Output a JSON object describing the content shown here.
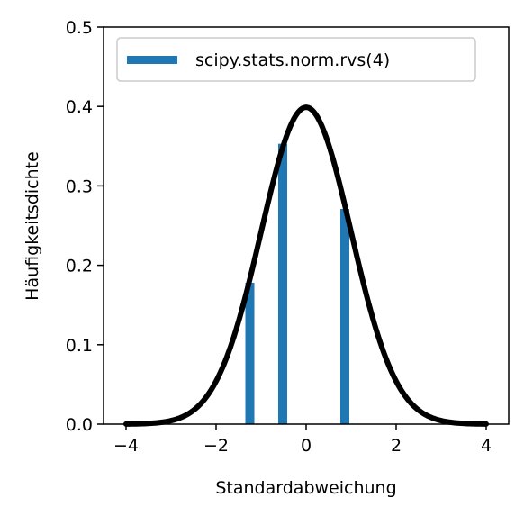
{
  "chart_data": {
    "type": "bar",
    "xlabel": "Standardabweichung",
    "ylabel": "Häufigkeitsdichte",
    "xlim": [
      -4.5,
      4.5
    ],
    "ylim": [
      0,
      0.5
    ],
    "x_ticks": [
      -4,
      -2,
      0,
      2,
      4
    ],
    "x_tick_labels": [
      "−4",
      "−2",
      "0",
      "2",
      "4"
    ],
    "y_ticks": [
      0.0,
      0.1,
      0.2,
      0.3,
      0.4,
      0.5
    ],
    "y_tick_labels": [
      "0.0",
      "0.1",
      "0.2",
      "0.3",
      "0.4",
      "0.5"
    ],
    "legend": {
      "position": "upper-left"
    },
    "bars": {
      "name": "scipy.stats.norm.rvs(4)",
      "color": "#1f77b4",
      "x": [
        -1.25,
        -0.52,
        0.86
      ],
      "values": [
        0.178,
        0.353,
        0.271
      ]
    },
    "curve": {
      "kind": "normal-pdf",
      "mean": 0,
      "sd": 1,
      "x_range": [
        -4,
        4
      ],
      "color": "#000000"
    },
    "grid": false
  }
}
